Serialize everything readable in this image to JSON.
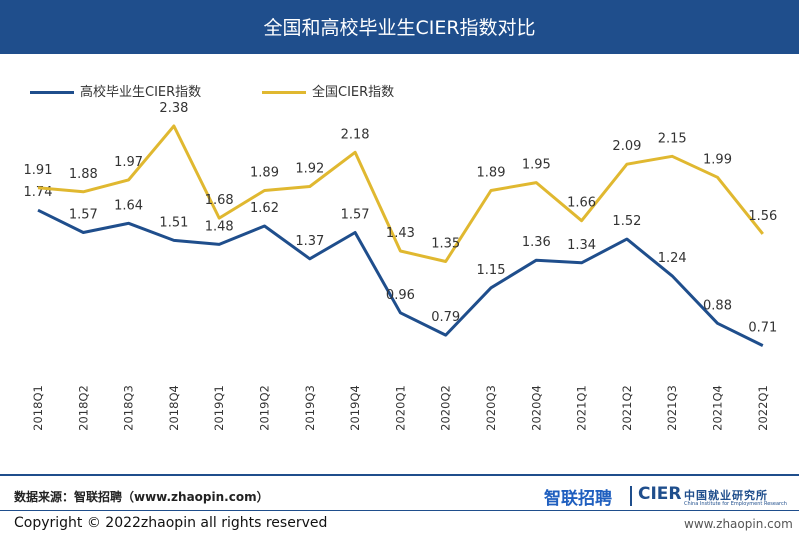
{
  "header": {
    "title": "全国和高校毕业生CIER指数对比"
  },
  "colors": {
    "header_bg": "#1f4e8c",
    "series_grad": "#1f4e8c",
    "series_nat": "#e0b830"
  },
  "chart_data": {
    "type": "line",
    "title": "全国和高校毕业生CIER指数对比",
    "categories": [
      "2018Q1",
      "2018Q2",
      "2018Q3",
      "2018Q4",
      "2019Q1",
      "2019Q2",
      "2019Q3",
      "2019Q4",
      "2020Q1",
      "2020Q2",
      "2020Q3",
      "2020Q4",
      "2021Q1",
      "2021Q2",
      "2021Q3",
      "2021Q4",
      "2022Q1"
    ],
    "series": [
      {
        "name": "高校毕业生CIER指数",
        "values": [
          1.74,
          1.57,
          1.64,
          1.51,
          1.48,
          1.62,
          1.37,
          1.57,
          0.96,
          0.79,
          1.15,
          1.36,
          1.34,
          1.52,
          1.24,
          0.88,
          0.71
        ]
      },
      {
        "name": "全国CIER指数",
        "values": [
          1.91,
          1.88,
          1.97,
          2.38,
          1.68,
          1.89,
          1.92,
          2.18,
          1.43,
          1.35,
          1.89,
          1.95,
          1.66,
          2.09,
          2.15,
          1.99,
          1.56
        ]
      }
    ],
    "ylim": [
      0,
      2.5
    ],
    "legend_position": "top-left",
    "grid": false
  },
  "footer": {
    "source": "数据来源：智联招聘（www.zhaopin.com）",
    "copyright": "Copyright ©  2022zhaopin all rights reserved",
    "logo_zhaopin": "智联招聘",
    "logo_cier": "CIER",
    "logo_cier_cn": "中国就业研究所",
    "logo_cier_en": "China Institute for Employment Research",
    "logo_url": "www.zhaopin.com"
  }
}
